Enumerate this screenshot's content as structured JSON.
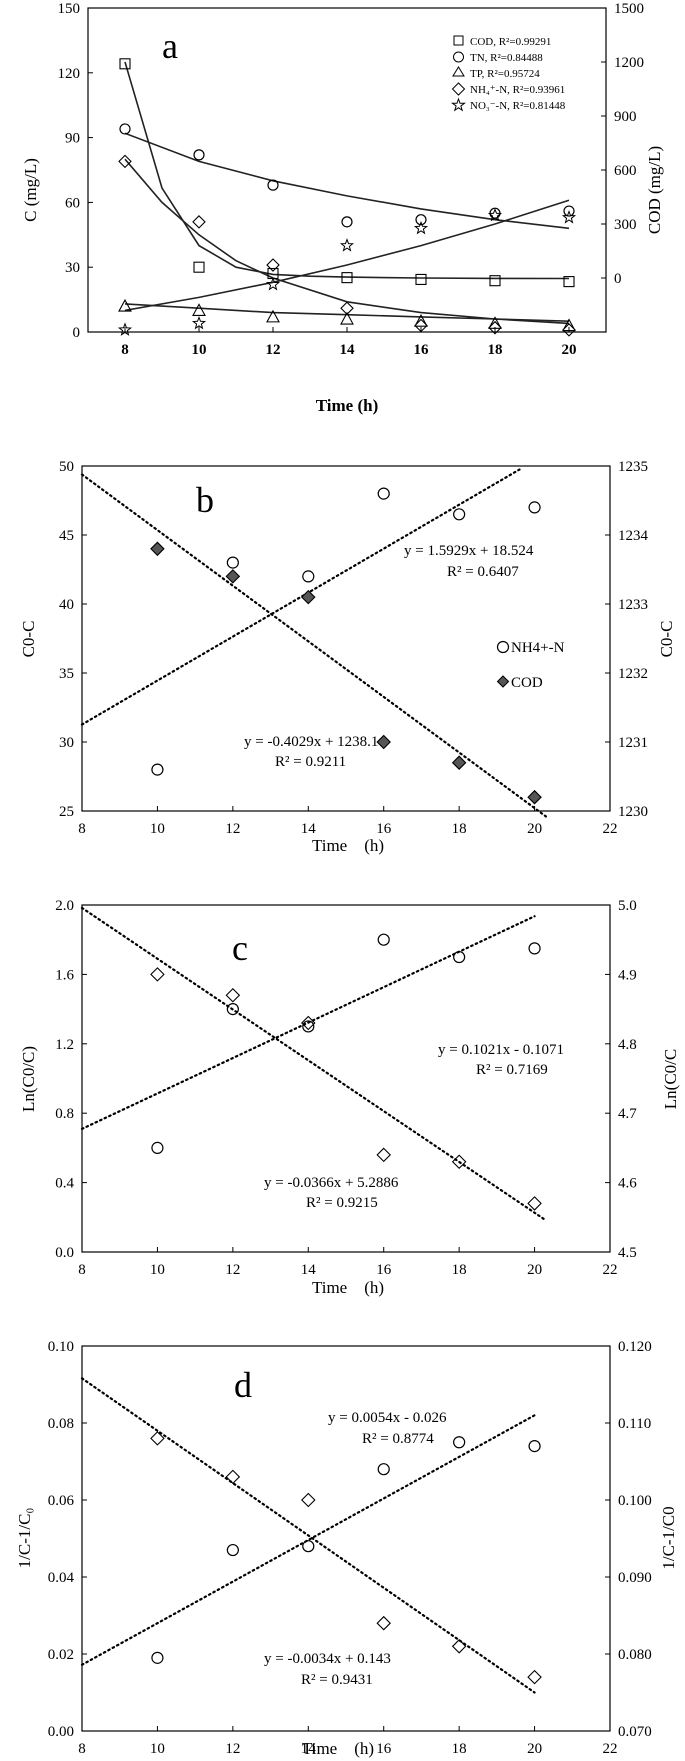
{
  "chart_data": [
    {
      "type": "scatter",
      "panel_label": "a",
      "xlabel": "Time (h)",
      "ylabel": "C (mg/L)",
      "ylabel_right": "COD (mg/L)",
      "xlim": [
        7,
        21
      ],
      "ylim": [
        0,
        150
      ],
      "ylim_right": [
        -300,
        1500
      ],
      "x_ticks": [
        8,
        10,
        12,
        14,
        16,
        18,
        20
      ],
      "y_ticks": [
        0,
        30,
        60,
        90,
        120,
        150
      ],
      "y_ticks_right": [
        0,
        300,
        600,
        900,
        1200,
        1500
      ],
      "legend_placement": "top-right",
      "grid": false,
      "series": [
        {
          "name": "COD, R²=0.99291",
          "marker": "square",
          "axis": "right",
          "x": [
            8,
            10,
            12,
            14,
            16,
            18,
            20
          ],
          "y": [
            1190,
            60,
            25,
            2,
            -8,
            -15,
            -20
          ]
        },
        {
          "name": "TN, R²=0.84488",
          "marker": "circle",
          "axis": "left",
          "x": [
            8,
            10,
            12,
            14,
            16,
            18,
            20
          ],
          "y": [
            94,
            82,
            68,
            51,
            52,
            55,
            56
          ]
        },
        {
          "name": "TP, R²=0.95724",
          "marker": "triangle",
          "axis": "left",
          "x": [
            8,
            10,
            12,
            14,
            16,
            18,
            20
          ],
          "y": [
            12,
            10,
            7,
            6,
            5,
            4,
            3
          ]
        },
        {
          "name": "NH₄⁺-N, R²=0.93961",
          "marker": "diamond",
          "axis": "left",
          "x": [
            8,
            10,
            12,
            14,
            16,
            18,
            20
          ],
          "y": [
            79,
            51,
            31,
            11,
            3,
            2,
            1
          ]
        },
        {
          "name": "NO₃⁻-N, R²=0.81448",
          "marker": "star",
          "axis": "left",
          "x": [
            8,
            10,
            12,
            14,
            16,
            18,
            20
          ],
          "y": [
            1,
            4,
            22,
            40,
            48,
            54,
            53
          ]
        }
      ],
      "fit_curves": [
        {
          "axis": "right",
          "x": [
            8,
            9,
            10,
            11,
            12,
            13,
            14,
            16,
            18,
            20
          ],
          "y": [
            1200,
            500,
            180,
            60,
            20,
            10,
            5,
            0,
            -2,
            -3
          ]
        },
        {
          "axis": "left",
          "x": [
            8,
            10,
            12,
            14,
            16,
            18,
            20
          ],
          "y": [
            92,
            79,
            70,
            63,
            57,
            52,
            48
          ]
        },
        {
          "axis": "left",
          "x": [
            8,
            10,
            12,
            14,
            16,
            18,
            20
          ],
          "y": [
            13,
            11,
            9,
            8,
            7,
            6,
            5
          ]
        },
        {
          "axis": "left",
          "x": [
            8,
            9,
            10,
            11,
            12,
            14,
            16,
            18,
            20
          ],
          "y": [
            80,
            60,
            45,
            33,
            25,
            14,
            9,
            6,
            4
          ]
        },
        {
          "axis": "left",
          "x": [
            8,
            10,
            12,
            14,
            16,
            18,
            20
          ],
          "y": [
            10,
            16,
            23,
            31,
            40,
            50,
            61
          ]
        }
      ]
    },
    {
      "type": "scatter",
      "panel_label": "b",
      "xlabel": "Time　(h)",
      "ylabel": "C0-C",
      "ylabel_right": "C0-C",
      "xlim": [
        8,
        22
      ],
      "ylim": [
        25,
        50
      ],
      "ylim_right": [
        1230,
        1235
      ],
      "x_ticks": [
        8,
        10,
        12,
        14,
        16,
        18,
        20,
        22
      ],
      "y_ticks": [
        25,
        30,
        35,
        40,
        45,
        50
      ],
      "y_ticks_right": [
        1230,
        1231,
        1232,
        1233,
        1234,
        1235
      ],
      "legend_placement": "right",
      "grid": false,
      "series": [
        {
          "name": "NH4+-N",
          "marker": "circle",
          "axis": "left",
          "x": [
            10,
            12,
            14,
            16,
            18,
            20
          ],
          "y": [
            28,
            43,
            42,
            48,
            46.5,
            47
          ]
        },
        {
          "name": "COD",
          "marker": "diamond",
          "axis": "left",
          "x": [
            10,
            12,
            14,
            16,
            18,
            20
          ],
          "y": [
            44,
            42,
            40.5,
            30,
            28.5,
            26
          ]
        }
      ],
      "trendlines": [
        {
          "equation": "y = 1.5929x + 18.524",
          "r2": "R² = 0.6407",
          "slope": 1.5929,
          "intercept": 18.524,
          "x_range": [
            8,
            19.6
          ],
          "axis": "left"
        },
        {
          "equation": "y = -0.4029x + 1238.1",
          "r2": "R² = 0.9211",
          "slope": -0.4029,
          "intercept": 1238.1,
          "x_range": [
            8,
            20.3
          ],
          "axis": "right"
        }
      ]
    },
    {
      "type": "scatter",
      "panel_label": "c",
      "xlabel": "Time　(h)",
      "ylabel": "Ln(C0/C)",
      "ylabel_right": "Ln(C0/C",
      "xlim": [
        8,
        22
      ],
      "ylim": [
        0,
        2
      ],
      "ylim_right": [
        4.5,
        5.0
      ],
      "x_ticks": [
        8,
        10,
        12,
        14,
        16,
        18,
        20,
        22
      ],
      "y_ticks": [
        "0.0",
        "0.4",
        "0.8",
        "1.2",
        "1.6",
        "2.0"
      ],
      "y_ticks_right": [
        "4.5",
        "4.6",
        "4.7",
        "4.8",
        "4.9",
        "5.0"
      ],
      "grid": false,
      "series": [
        {
          "marker": "circle",
          "axis": "left",
          "x": [
            10,
            12,
            14,
            16,
            18,
            20
          ],
          "y": [
            0.6,
            1.4,
            1.3,
            1.8,
            1.7,
            1.75
          ]
        },
        {
          "marker": "diamond",
          "axis": "left",
          "x": [
            10,
            12,
            14,
            16,
            18,
            20
          ],
          "y": [
            1.6,
            1.48,
            1.32,
            0.56,
            0.52,
            0.28
          ]
        }
      ],
      "trendlines": [
        {
          "equation": "y = 0.1021x - 0.1071",
          "r2": "R² = 0.7169",
          "slope": 0.1021,
          "intercept": -0.1071,
          "x_range": [
            8,
            20
          ],
          "axis": "left"
        },
        {
          "equation": "y = -0.0366x + 5.2886",
          "r2": "R² = 0.9215",
          "slope": -0.0366,
          "intercept": 5.2886,
          "x_range": [
            8,
            20.3
          ],
          "axis": "right"
        }
      ]
    },
    {
      "type": "scatter",
      "panel_label": "d",
      "xlabel": "Time　(h)",
      "ylabel": "1/C-1/C₀",
      "ylabel_right": "1/C-1/C0",
      "xlim": [
        8,
        22
      ],
      "ylim": [
        0,
        0.1
      ],
      "ylim_right": [
        0.07,
        0.12
      ],
      "x_ticks": [
        8,
        10,
        12,
        14,
        16,
        18,
        20,
        22
      ],
      "y_ticks": [
        "0.00",
        "0.02",
        "0.04",
        "0.06",
        "0.08",
        "0.10"
      ],
      "y_ticks_right": [
        "0.070",
        "0.080",
        "0.090",
        "0.100",
        "0.110",
        "0.120"
      ],
      "grid": false,
      "series": [
        {
          "marker": "circle",
          "axis": "left",
          "x": [
            10,
            12,
            14,
            16,
            18,
            20
          ],
          "y": [
            0.019,
            0.047,
            0.048,
            0.068,
            0.075,
            0.074
          ]
        },
        {
          "marker": "diamond",
          "axis": "left",
          "x": [
            10,
            12,
            14,
            16,
            18,
            20
          ],
          "y": [
            0.076,
            0.066,
            0.06,
            0.028,
            0.022,
            0.014
          ]
        }
      ],
      "trendlines": [
        {
          "equation": "y = 0.0054x - 0.026",
          "r2": "R² = 0.8774",
          "slope": 0.0054,
          "intercept": -0.026,
          "x_range": [
            8,
            20
          ],
          "axis": "left"
        },
        {
          "equation": "y = -0.0034x + 0.143",
          "r2": "R² = 0.9431",
          "slope": -0.0034,
          "intercept": 0.143,
          "x_range": [
            8,
            20
          ],
          "axis": "right"
        }
      ]
    }
  ]
}
